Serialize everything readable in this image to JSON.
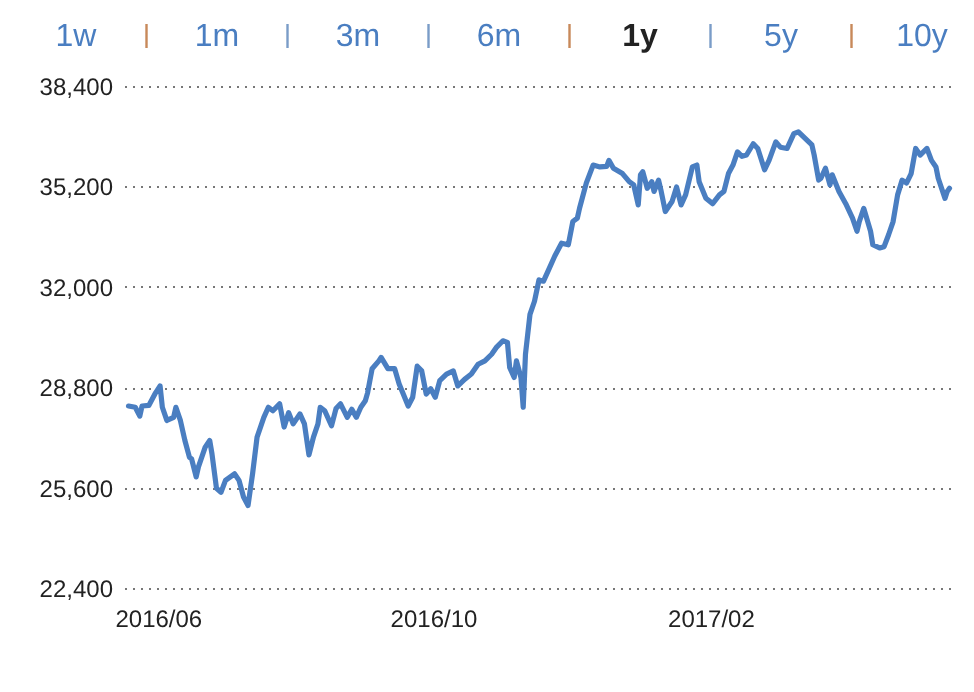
{
  "chart_data": {
    "type": "line",
    "annotations": [
      "1w",
      "1m",
      "3m",
      "6m",
      "1y",
      "5y",
      "10y"
    ],
    "x": [
      "2016-05-19",
      "2016-05-22",
      "2016-05-24",
      "2016-05-25",
      "2016-05-28",
      "2016-05-31",
      "2016-06-02",
      "2016-06-03",
      "2016-06-05",
      "2016-06-08",
      "2016-06-09",
      "2016-06-11",
      "2016-06-13",
      "2016-06-15",
      "2016-06-16",
      "2016-06-18",
      "2016-06-19",
      "2016-06-22",
      "2016-06-24",
      "2016-06-25",
      "2016-06-27",
      "2016-06-29",
      "2016-07-01",
      "2016-07-05",
      "2016-07-07",
      "2016-07-09",
      "2016-07-11",
      "2016-07-13",
      "2016-07-15",
      "2016-07-18",
      "2016-07-20",
      "2016-07-22",
      "2016-07-25",
      "2016-07-27",
      "2016-07-29",
      "2016-07-31",
      "2016-08-03",
      "2016-08-05",
      "2016-08-07",
      "2016-08-09",
      "2016-08-11",
      "2016-08-12",
      "2016-08-14",
      "2016-08-17",
      "2016-08-19",
      "2016-08-21",
      "2016-08-24",
      "2016-08-26",
      "2016-08-28",
      "2016-08-30",
      "2016-09-01",
      "2016-09-02",
      "2016-09-04",
      "2016-09-07",
      "2016-09-08",
      "2016-09-11",
      "2016-09-14",
      "2016-09-16",
      "2016-09-20",
      "2016-09-22",
      "2016-09-24",
      "2016-09-26",
      "2016-09-28",
      "2016-09-30",
      "2016-10-02",
      "2016-10-04",
      "2016-10-07",
      "2016-10-10",
      "2016-10-12",
      "2016-10-15",
      "2016-10-18",
      "2016-10-21",
      "2016-10-24",
      "2016-10-27",
      "2016-10-29",
      "2016-11-01",
      "2016-11-03",
      "2016-11-04",
      "2016-11-06",
      "2016-11-07",
      "2016-11-09",
      "2016-11-10",
      "2016-11-11",
      "2016-11-13",
      "2016-11-15",
      "2016-11-17",
      "2016-11-19",
      "2016-11-21",
      "2016-11-24",
      "2016-11-27",
      "2016-11-30",
      "2016-12-02",
      "2016-12-04",
      "2016-12-05",
      "2016-12-08",
      "2016-12-11",
      "2016-12-14",
      "2016-12-17",
      "2016-12-18",
      "2016-12-20",
      "2016-12-24",
      "2016-12-27",
      "2016-12-29",
      "2016-12-31",
      "2017-01-01",
      "2017-01-02",
      "2017-01-04",
      "2017-01-06",
      "2017-01-07",
      "2017-01-09",
      "2017-01-10",
      "2017-01-12",
      "2017-01-15",
      "2017-01-17",
      "2017-01-19",
      "2017-01-21",
      "2017-01-24",
      "2017-01-26",
      "2017-01-27",
      "2017-01-30",
      "2017-02-02",
      "2017-02-05",
      "2017-02-07",
      "2017-02-09",
      "2017-02-11",
      "2017-02-13",
      "2017-02-15",
      "2017-02-17",
      "2017-02-20",
      "2017-02-22",
      "2017-02-25",
      "2017-02-27",
      "2017-03-02",
      "2017-03-04",
      "2017-03-07",
      "2017-03-10",
      "2017-03-12",
      "2017-03-15",
      "2017-03-18",
      "2017-03-19",
      "2017-03-21",
      "2017-03-22",
      "2017-03-24",
      "2017-03-26",
      "2017-03-27",
      "2017-03-30",
      "2017-04-02",
      "2017-04-05",
      "2017-04-07",
      "2017-04-08",
      "2017-04-10",
      "2017-04-13",
      "2017-04-14",
      "2017-04-17",
      "2017-04-19",
      "2017-04-21",
      "2017-04-23",
      "2017-04-25",
      "2017-04-27",
      "2017-04-29",
      "2017-05-01",
      "2017-05-03",
      "2017-05-05",
      "2017-05-08",
      "2017-05-10",
      "2017-05-12",
      "2017-05-13",
      "2017-05-16",
      "2017-05-17",
      "2017-05-18"
    ],
    "series": [
      {
        "color": "#4a7ec1",
        "values": [
          28200,
          28160,
          27880,
          28200,
          28220,
          28620,
          28840,
          28160,
          27740,
          27840,
          28160,
          27740,
          27100,
          26570,
          26510,
          25940,
          26260,
          26890,
          27100,
          26680,
          25580,
          25450,
          25830,
          26040,
          25830,
          25300,
          25030,
          26040,
          27210,
          27840,
          28160,
          28050,
          28270,
          27530,
          27990,
          27630,
          27950,
          27630,
          26640,
          27210,
          27630,
          28160,
          28050,
          27570,
          28120,
          28270,
          27840,
          28100,
          27840,
          28160,
          28370,
          28620,
          29390,
          29640,
          29750,
          29390,
          29390,
          28900,
          28200,
          28480,
          29470,
          29320,
          28580,
          28750,
          28480,
          29010,
          29220,
          29320,
          28840,
          29050,
          29220,
          29530,
          29640,
          29850,
          30060,
          30280,
          30230,
          29430,
          29110,
          29640,
          29110,
          28160,
          29850,
          31120,
          31540,
          32220,
          32180,
          32500,
          32980,
          33390,
          33340,
          34080,
          34190,
          34510,
          35310,
          35880,
          35820,
          35840,
          36030,
          35780,
          35610,
          35350,
          35250,
          34610,
          35570,
          35670,
          35140,
          35350,
          35040,
          35400,
          35100,
          34400,
          34720,
          35180,
          34610,
          34930,
          35820,
          35880,
          35350,
          34820,
          34650,
          34930,
          35040,
          35610,
          35880,
          36300,
          36160,
          36200,
          36560,
          36410,
          35730,
          36030,
          36620,
          36450,
          36410,
          36880,
          36940,
          36730,
          36520,
          36200,
          35400,
          35460,
          35780,
          35250,
          35570,
          35040,
          34650,
          34190,
          33770,
          34080,
          34500,
          33770,
          33340,
          33240,
          33280,
          33660,
          34080,
          34930,
          35400,
          35310,
          35610,
          36410,
          36200,
          36410,
          36030,
          35820,
          35460,
          34820,
          35040,
          35140
        ]
      }
    ],
    "xlim": [
      "2016-05-17",
      "2017-05-20"
    ],
    "xticks": [
      {
        "value": "2016-06-01",
        "label": "2016/06"
      },
      {
        "value": "2016-10-01",
        "label": "2016/10"
      },
      {
        "value": "2017-02-01",
        "label": "2017/02"
      }
    ],
    "ylim": [
      22400,
      38400
    ],
    "yticks": [
      {
        "value": 22400,
        "label": "22,400"
      },
      {
        "value": 25600,
        "label": "25,600"
      },
      {
        "value": 28800,
        "label": "28,800"
      },
      {
        "value": 32000,
        "label": "32,000"
      },
      {
        "value": 35200,
        "label": "35,200"
      },
      {
        "value": 38400,
        "label": "38,400"
      }
    ],
    "grid": "y"
  }
}
